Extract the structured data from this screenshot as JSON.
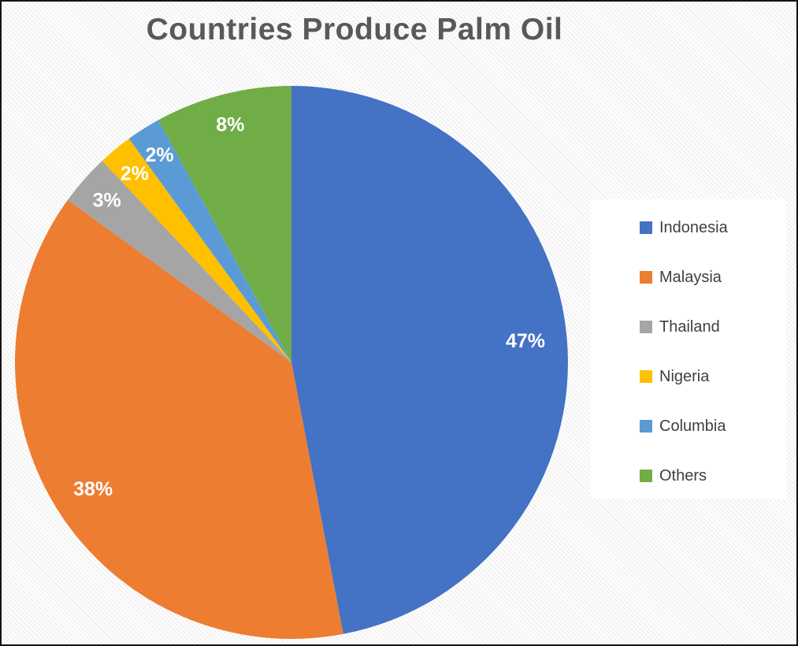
{
  "window": {
    "frame_border_color": "#141414",
    "background_stripe_color": "#efefef"
  },
  "chart_data": {
    "type": "pie",
    "title": "Countries Produce Palm Oil",
    "categories": [
      "Indonesia",
      "Malaysia",
      "Thailand",
      "Nigeria",
      "Columbia",
      "Others"
    ],
    "values": [
      47,
      38,
      3,
      2,
      2,
      8
    ],
    "data_labels": [
      "47%",
      "38%",
      "3%",
      "2%",
      "2%",
      "8%"
    ],
    "colors": [
      "#4472C4",
      "#ED7D31",
      "#A5A5A5",
      "#FFC000",
      "#5B9BD5",
      "#70AD47"
    ],
    "start_angle_deg": 0,
    "direction": "clockwise",
    "legend_position": "right",
    "data_label_color": "#FFFFFF",
    "title_color": "#595959",
    "legend_text_color": "#404040",
    "legend_background": "#FFFFFF"
  }
}
